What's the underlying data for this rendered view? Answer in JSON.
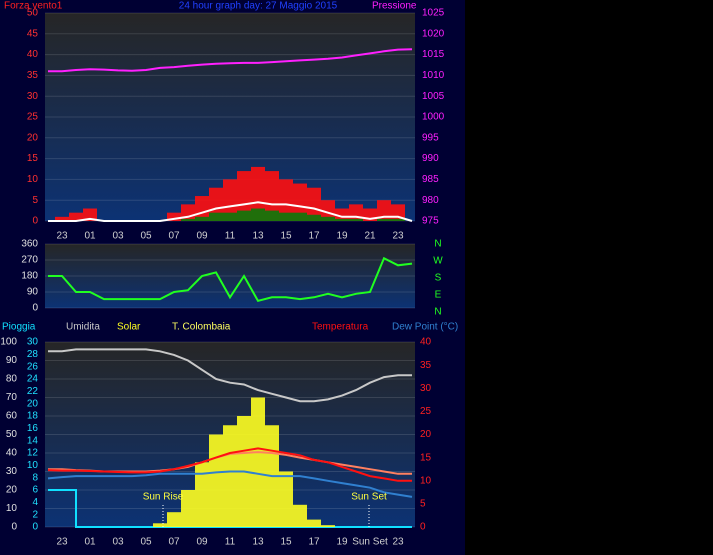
{
  "chart_data": [
    {
      "type": "combo",
      "title": "24 hour graph day:  27 Maggio 2015",
      "ylabel": "Forza vento1",
      "y2label": "Pressione",
      "categories": [
        null,
        "23",
        null,
        "01",
        null,
        "03",
        null,
        "05",
        null,
        "07",
        null,
        "09",
        null,
        "11",
        null,
        "13",
        null,
        "15",
        null,
        "17",
        null,
        "19",
        null,
        "21",
        null,
        "23",
        null
      ],
      "ylim": [
        0,
        50
      ],
      "yticks": [
        0,
        5,
        10,
        15,
        20,
        25,
        30,
        35,
        40,
        45,
        50
      ],
      "y2lim": [
        975,
        1025
      ],
      "y2ticks": [
        975,
        980,
        985,
        990,
        995,
        1000,
        1005,
        1010,
        1015,
        1020,
        1025
      ],
      "grid": true,
      "series": [
        {
          "style": "bar",
          "color": "#ff1010",
          "axis": "y",
          "values": [
            0,
            1,
            2,
            3,
            0,
            0,
            0,
            0,
            0,
            2,
            4,
            6,
            8,
            10,
            12,
            13,
            12,
            10,
            9,
            8,
            5,
            3,
            4,
            3,
            5,
            4,
            0
          ]
        },
        {
          "style": "bar",
          "color": "#0a7a0a",
          "axis": "y",
          "values": [
            0,
            0,
            0,
            0,
            0,
            0,
            0,
            0,
            0,
            0,
            0.5,
            1,
            2,
            2,
            2.5,
            3,
            2.5,
            2,
            2,
            1.5,
            1,
            0.5,
            0.5,
            0,
            0.5,
            0.5,
            0
          ]
        },
        {
          "style": "line",
          "color": "#ffffff",
          "axis": "y",
          "values": [
            0,
            0,
            0,
            0.5,
            0,
            0,
            0,
            0,
            0,
            0.5,
            1,
            2,
            3,
            3.5,
            4,
            4.5,
            4,
            4,
            3.5,
            3,
            2,
            1,
            1,
            0.5,
            1,
            1,
            0
          ]
        },
        {
          "style": "line",
          "color": "#ff20ff",
          "axis": "y2",
          "values": [
            1011,
            1011,
            1011.3,
            1011.5,
            1011.4,
            1011.2,
            1011.1,
            1011.3,
            1011.8,
            1012,
            1012.3,
            1012.6,
            1012.8,
            1012.9,
            1013,
            1013,
            1013.2,
            1013.4,
            1013.6,
            1013.8,
            1014,
            1014.3,
            1014.8,
            1015.3,
            1015.8,
            1016.2,
            1016.3
          ]
        }
      ]
    },
    {
      "type": "combo",
      "ylim": [
        0,
        360
      ],
      "yticks": [
        0,
        90,
        180,
        270,
        360
      ],
      "compass_labels": [
        "N",
        "W",
        "S",
        "E",
        "N"
      ],
      "grid": true,
      "series": [
        {
          "style": "line",
          "color": "#20ff20",
          "axis": "y",
          "values": [
            180,
            180,
            90,
            90,
            50,
            50,
            50,
            50,
            50,
            90,
            100,
            180,
            200,
            60,
            180,
            40,
            60,
            60,
            50,
            60,
            80,
            60,
            80,
            90,
            280,
            240,
            250
          ]
        }
      ]
    },
    {
      "type": "combo",
      "categories": [
        null,
        "23",
        null,
        "01",
        null,
        "03",
        null,
        "05",
        null,
        "07",
        null,
        "09",
        null,
        "11",
        null,
        "13",
        null,
        "15",
        null,
        "17",
        null,
        "19",
        null,
        "Sun Set",
        null,
        "23",
        null
      ],
      "ylim": [
        0,
        100
      ],
      "yticks": [
        0,
        10,
        20,
        30,
        40,
        50,
        60,
        70,
        80,
        90,
        100
      ],
      "rain_ylim": [
        0,
        30
      ],
      "rain_yticks": [
        0,
        2,
        4,
        6,
        8,
        10,
        12,
        14,
        16,
        18,
        20,
        22,
        24,
        26,
        28,
        30
      ],
      "y2lim": [
        0,
        40
      ],
      "y2ticks": [
        0,
        5,
        10,
        15,
        20,
        25,
        30,
        35,
        40
      ],
      "annotations": [
        "Sun Rise",
        "Sun Set"
      ],
      "grid": true,
      "series": [
        {
          "name": "Pioggia",
          "style": "step",
          "color": "#10e0ff",
          "axis": "rain",
          "values": [
            6,
            6,
            0,
            0,
            0,
            0,
            0,
            0,
            0,
            0,
            0,
            0,
            0,
            0,
            0,
            0,
            0,
            0,
            0,
            0,
            0,
            0,
            0,
            0,
            0,
            0,
            0
          ]
        },
        {
          "name": "Umidita",
          "style": "line",
          "color": "#c8c8c8",
          "axis": "y",
          "values": [
            95,
            95,
            96,
            96,
            96,
            96,
            96,
            96,
            95,
            93,
            90,
            85,
            80,
            78,
            77,
            74,
            72,
            70,
            68,
            68,
            69,
            71,
            74,
            78,
            81,
            82,
            82
          ]
        },
        {
          "name": "Solar",
          "style": "bar",
          "color": "#ffff20",
          "axis": "y",
          "values": [
            0,
            0,
            0,
            0,
            0,
            0,
            0,
            0,
            2,
            8,
            20,
            35,
            50,
            55,
            60,
            70,
            55,
            30,
            12,
            4,
            1,
            0,
            0,
            0,
            0,
            0,
            0
          ]
        },
        {
          "name": "T. Colombaia",
          "style": "line",
          "color": "#ff8060",
          "axis": "y2",
          "values": [
            12.5,
            12.5,
            12.3,
            12.2,
            12,
            12,
            12,
            12,
            12.2,
            12.5,
            13,
            14,
            15,
            15.8,
            16,
            16.2,
            16,
            15.6,
            15,
            14.5,
            14,
            13.5,
            13,
            12.5,
            12,
            11.5,
            11.5
          ]
        },
        {
          "name": "Temperatura",
          "style": "line",
          "color": "#ff1010",
          "axis": "y2",
          "values": [
            12.3,
            12.2,
            12.2,
            12.1,
            12,
            11.9,
            11.8,
            11.8,
            12,
            12.5,
            13.2,
            14,
            15,
            16,
            16.5,
            17,
            16.5,
            16,
            15.5,
            14.5,
            14,
            13,
            12,
            11,
            10.5,
            10,
            10
          ]
        },
        {
          "name": "Dew Point (°C)",
          "style": "line",
          "color": "#3080d0",
          "axis": "y2",
          "values": [
            10.5,
            10.8,
            11,
            11,
            11,
            11,
            11,
            11.2,
            11.5,
            11.5,
            11.5,
            11.5,
            11.8,
            12,
            12,
            11.5,
            11,
            11,
            11,
            10.5,
            10,
            9.5,
            9,
            8.5,
            7.5,
            7,
            6.5
          ]
        }
      ]
    }
  ]
}
